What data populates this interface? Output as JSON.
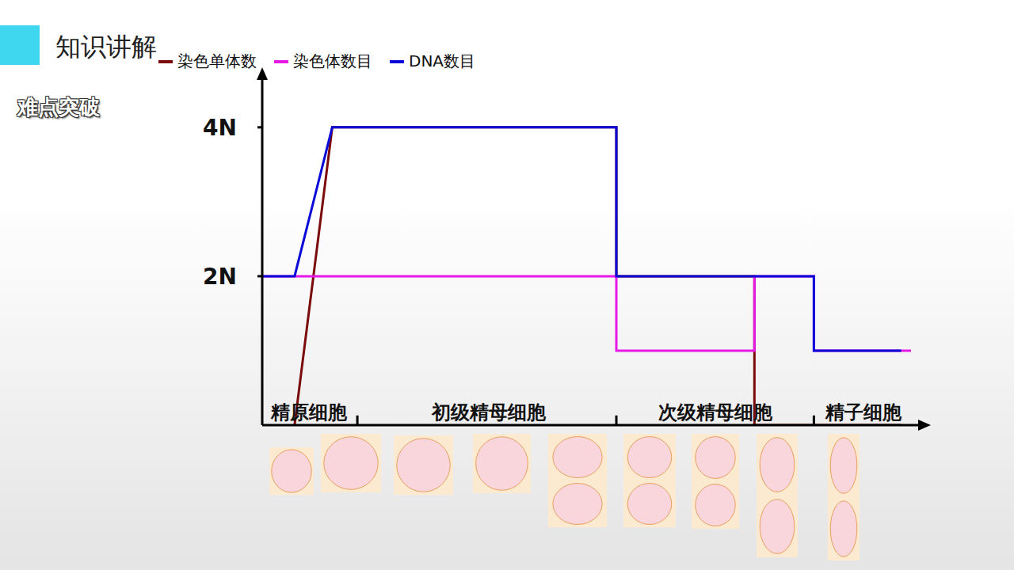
{
  "header": {
    "title": "知识讲解",
    "subtitle": "难点突破"
  },
  "chart_data": {
    "type": "line",
    "series": [
      {
        "name": "染色单体数",
        "color": "#7b0a0a",
        "x": [
          0.49,
          1.06,
          5.36,
          5.36,
          7.45,
          7.45,
          9.67
        ],
        "values": [
          0,
          4,
          4,
          2,
          2,
          0,
          0
        ]
      },
      {
        "name": "染色体数目",
        "color": "#e619e6",
        "x": [
          0,
          5.36,
          5.36,
          7.45,
          7.45,
          8.35,
          8.35,
          9.82
        ],
        "values": [
          2,
          2,
          1,
          1,
          2,
          2,
          1,
          1
        ]
      },
      {
        "name": "DNA数目",
        "color": "#0a0ad8",
        "x": [
          0,
          0.49,
          1.06,
          5.36,
          5.36,
          8.35,
          8.35,
          9.67
        ],
        "values": [
          2,
          2,
          4,
          4,
          2,
          2,
          1,
          1
        ]
      }
    ],
    "xlim": [
      0,
      10
    ],
    "ylim": [
      0,
      4.7
    ],
    "yticks": [
      {
        "value": 2,
        "label": "2N"
      },
      {
        "value": 4,
        "label": "4N"
      }
    ],
    "tick_labels": "y",
    "legend": "top",
    "stages": [
      {
        "label": "精原细胞",
        "x": 0.71
      },
      {
        "label": "初级精母细胞",
        "x": 3.43
      },
      {
        "label": "次级精母细胞",
        "x": 6.86
      },
      {
        "label": "精子细胞",
        "x": 9.1
      }
    ],
    "stage_boundaries": [
      1.44,
      5.36,
      8.35
    ]
  }
}
